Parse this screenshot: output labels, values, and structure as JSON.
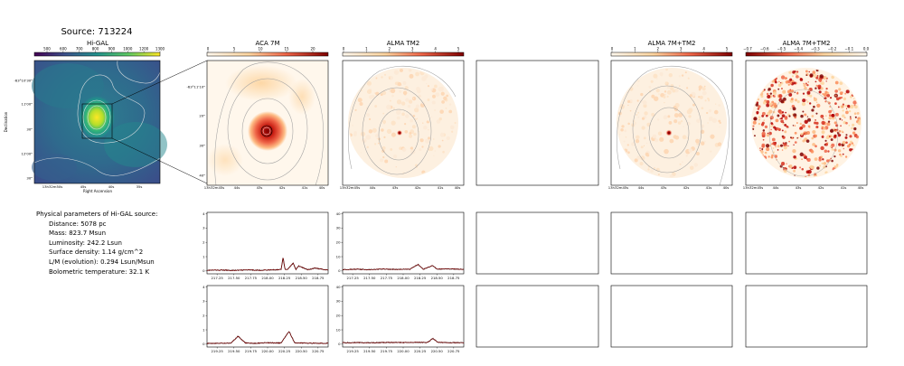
{
  "title": "Source: 713224",
  "panels": {
    "higal": "Hi-GAL",
    "aca7m": "ACA 7M",
    "almatm2": "ALMA TM2",
    "alma7mtm2": "ALMA 7M+TM2",
    "alma7mtm2_b": "ALMA 7M+TM2"
  },
  "colorbars": {
    "higal": {
      "ticks": [
        "500",
        "600",
        "700",
        "800",
        "900",
        "1000",
        "1200",
        "1300"
      ]
    },
    "aca7m": {
      "ticks": [
        "0",
        "5",
        "10",
        "15",
        "20"
      ]
    },
    "almatm2": {
      "ticks": [
        "0",
        "1",
        "2",
        "3",
        "4",
        "5"
      ]
    },
    "alma7mtm2": {
      "ticks": [
        "0",
        "1",
        "2",
        "3",
        "4",
        "5"
      ]
    },
    "alma7mtm2_b": {
      "ticks": [
        "−0.7",
        "−0.6",
        "−0.5",
        "−0.4",
        "−0.3",
        "−0.2",
        "−0.1",
        "0.0"
      ]
    }
  },
  "higal_axes": {
    "ylabel": "Declination",
    "xlabel": "Right Ascension",
    "yticks": [
      "-63°10'30\"",
      "11'00\"",
      "30\"",
      "12'00\"",
      "30\""
    ],
    "xticks": [
      "13h32m50s",
      "45s",
      "40s",
      "35s"
    ]
  },
  "zoom_axes": {
    "yticks": [
      "-63°11'10\"",
      "20\"",
      "30\"",
      "40\""
    ],
    "xticks": [
      "13h32m45s",
      "44s",
      "43s",
      "42s",
      "41s",
      "40s"
    ]
  },
  "info": {
    "heading": "Physical parameters of Hi-GAL source:",
    "lines": [
      "Distance: 5078 pc",
      "Mass: 823.7 Msun",
      "Luminosity: 242.2 Lsun",
      "Surface density: 1.14 g/cm^2",
      "L/M (evolution): 0.294 Lsun/Msun",
      "Bolometric temperature: 32.1 K"
    ]
  },
  "chart_data": [
    {
      "type": "line",
      "panel": "aca7m-spectrum-spw1",
      "xticks": [
        "217.25",
        "217.50",
        "217.75",
        "218.00",
        "218.25",
        "218.50",
        "218.75"
      ],
      "yticks": [
        "0",
        "1",
        "2",
        "3",
        "4"
      ],
      "xlim": [
        217.1,
        218.9
      ],
      "ylim": [
        -0.2,
        4.1
      ],
      "series": [
        {
          "color": "#8b0000",
          "x": [
            217.1,
            217.3,
            217.5,
            217.7,
            217.9,
            218.1,
            218.2,
            218.23,
            218.26,
            218.3,
            218.38,
            218.42,
            218.46,
            218.6,
            218.7,
            218.9
          ],
          "y": [
            0.05,
            0.06,
            0.04,
            0.07,
            0.05,
            0.08,
            0.1,
            0.95,
            0.1,
            0.12,
            0.55,
            0.1,
            0.35,
            0.08,
            0.2,
            0.06
          ]
        }
      ]
    },
    {
      "type": "line",
      "panel": "almatm2-spectrum-spw1",
      "xticks": [
        "217.25",
        "217.50",
        "217.75",
        "218.00",
        "218.25",
        "218.50",
        "218.75"
      ],
      "yticks": [
        "0",
        "10",
        "20",
        "30",
        "40"
      ],
      "xlim": [
        217.1,
        218.9
      ],
      "ylim": [
        -2,
        41
      ],
      "series": [
        {
          "color": "#8b0000",
          "x": [
            217.1,
            217.3,
            217.5,
            217.7,
            217.9,
            218.1,
            218.22,
            218.3,
            218.44,
            218.5,
            218.7,
            218.9
          ],
          "y": [
            1,
            1.2,
            0.9,
            1.3,
            1.1,
            1.2,
            4.5,
            1.2,
            3.8,
            1.3,
            1.5,
            1.1
          ]
        }
      ]
    },
    {
      "type": "line",
      "panel": "aca7m-spectrum-spw2",
      "xticks": [
        "219.25",
        "219.50",
        "219.75",
        "220.00",
        "220.25",
        "220.50",
        "220.75"
      ],
      "yticks": [
        "0",
        "1",
        "2",
        "3",
        "4"
      ],
      "xlim": [
        219.1,
        220.9
      ],
      "ylim": [
        -0.2,
        4.1
      ],
      "series": [
        {
          "color": "#8b0000",
          "x": [
            219.1,
            219.3,
            219.45,
            219.56,
            219.67,
            219.8,
            220.0,
            220.2,
            220.32,
            220.4,
            220.6,
            220.9
          ],
          "y": [
            0.05,
            0.07,
            0.06,
            0.55,
            0.08,
            0.06,
            0.1,
            0.08,
            0.9,
            0.1,
            0.07,
            0.06
          ]
        }
      ]
    },
    {
      "type": "line",
      "panel": "almatm2-spectrum-spw2",
      "xticks": [
        "219.25",
        "219.50",
        "219.75",
        "220.00",
        "220.25",
        "220.50",
        "220.75"
      ],
      "yticks": [
        "0",
        "10",
        "20",
        "30",
        "40"
      ],
      "xlim": [
        219.1,
        220.9
      ],
      "ylim": [
        -2,
        41
      ],
      "series": [
        {
          "color": "#8b0000",
          "x": [
            219.1,
            219.3,
            219.5,
            219.8,
            220.0,
            220.2,
            220.36,
            220.44,
            220.52,
            220.7,
            220.9
          ],
          "y": [
            1,
            1.1,
            1.0,
            1.2,
            1.1,
            1.3,
            1.2,
            4.0,
            1.2,
            1.0,
            1.1
          ]
        }
      ]
    }
  ]
}
